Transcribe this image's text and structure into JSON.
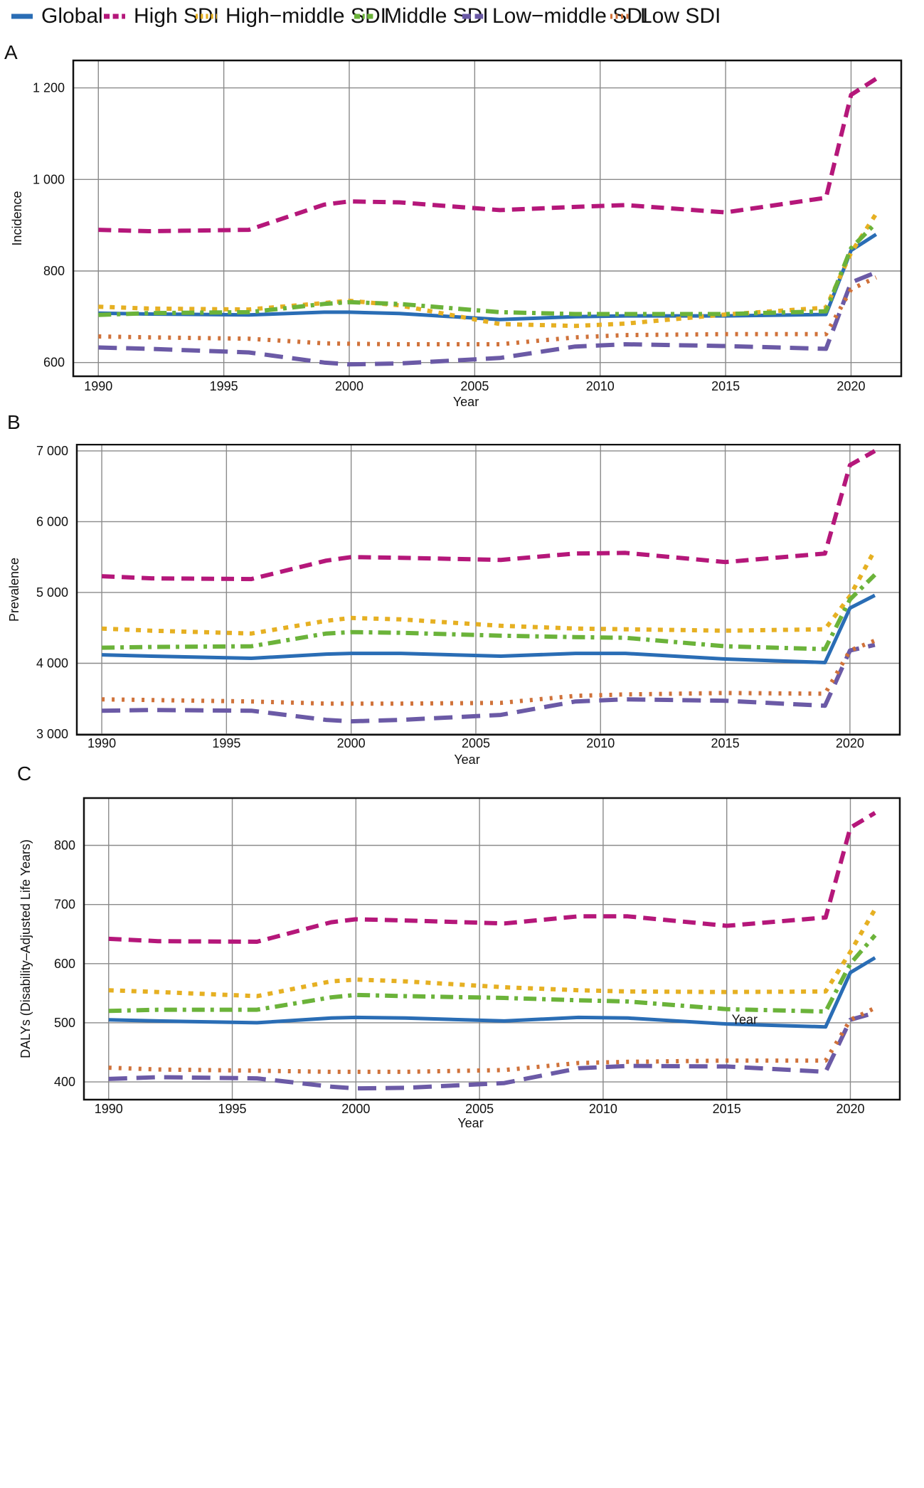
{
  "legend": [
    {
      "name": "Global",
      "color": "#2a6db5",
      "dash": "solid"
    },
    {
      "name": "High SDI",
      "color": "#b5177a",
      "dash": "dash"
    },
    {
      "name": "High−middle SDI",
      "color": "#e6b022",
      "dash": "dot"
    },
    {
      "name": "Middle SDI",
      "color": "#6bb33a",
      "dash": "dashdot"
    },
    {
      "name": "Low−middle SDI",
      "color": "#6b5aa6",
      "dash": "longdash"
    },
    {
      "name": "Low SDI",
      "color": "#d0723a",
      "dash": "smalldot"
    }
  ],
  "chart_data": [
    {
      "panel": "A",
      "type": "line",
      "title": "",
      "xlabel": "Year",
      "ylabel": "Incidence",
      "xlim": [
        1989,
        2022
      ],
      "ylim": [
        570,
        1260
      ],
      "xticks": [
        1990,
        1995,
        2000,
        2005,
        2010,
        2015,
        2020
      ],
      "yticks": [
        600,
        800,
        1000,
        1200
      ],
      "ytick_labels": [
        "600",
        "800",
        "1 000",
        "1 200"
      ],
      "x": [
        1990,
        1992,
        1996,
        1999,
        2000,
        2002,
        2006,
        2009,
        2011,
        2015,
        2019,
        2020,
        2021
      ],
      "series": [
        {
          "name": "Global",
          "values": [
            708,
            706,
            704,
            710,
            710,
            707,
            694,
            700,
            702,
            702,
            705,
            845,
            880
          ]
        },
        {
          "name": "High SDI",
          "values": [
            890,
            887,
            890,
            945,
            952,
            950,
            933,
            940,
            944,
            928,
            960,
            1185,
            1220
          ]
        },
        {
          "name": "High−middle SDI",
          "values": [
            722,
            718,
            716,
            730,
            735,
            725,
            684,
            680,
            685,
            705,
            720,
            840,
            925
          ]
        },
        {
          "name": "Middle SDI",
          "values": [
            704,
            708,
            710,
            728,
            732,
            728,
            710,
            706,
            706,
            706,
            712,
            850,
            905
          ]
        },
        {
          "name": "Low−middle SDI",
          "values": [
            633,
            630,
            622,
            600,
            596,
            598,
            610,
            635,
            640,
            636,
            630,
            775,
            797
          ]
        },
        {
          "name": "Low SDI",
          "values": [
            657,
            655,
            652,
            642,
            641,
            640,
            640,
            655,
            660,
            662,
            662,
            760,
            786
          ]
        }
      ]
    },
    {
      "panel": "B",
      "type": "line",
      "title": "",
      "xlabel": "Year",
      "ylabel": "Prevalence",
      "xlim": [
        1989,
        2022
      ],
      "ylim": [
        2990,
        7090
      ],
      "xticks": [
        1990,
        1995,
        2000,
        2005,
        2010,
        2015,
        2020
      ],
      "yticks": [
        3000,
        4000,
        5000,
        6000,
        7000
      ],
      "ytick_labels": [
        "3 000",
        "4 000",
        "5 000",
        "6 000",
        "7 000"
      ],
      "x": [
        1990,
        1992,
        1996,
        1999,
        2000,
        2002,
        2006,
        2009,
        2011,
        2015,
        2019,
        2020,
        2021
      ],
      "series": [
        {
          "name": "Global",
          "values": [
            4120,
            4100,
            4070,
            4130,
            4140,
            4140,
            4100,
            4140,
            4140,
            4060,
            4010,
            4780,
            4960
          ]
        },
        {
          "name": "High SDI",
          "values": [
            5230,
            5200,
            5190,
            5450,
            5500,
            5490,
            5460,
            5550,
            5560,
            5430,
            5550,
            6800,
            7000
          ]
        },
        {
          "name": "High−middle SDI",
          "values": [
            4490,
            4460,
            4420,
            4600,
            4640,
            4620,
            4530,
            4490,
            4480,
            4460,
            4480,
            4950,
            5600
          ]
        },
        {
          "name": "Middle SDI",
          "values": [
            4220,
            4230,
            4240,
            4420,
            4440,
            4430,
            4390,
            4370,
            4360,
            4240,
            4200,
            4900,
            5250
          ]
        },
        {
          "name": "Low−middle SDI",
          "values": [
            3330,
            3340,
            3330,
            3200,
            3180,
            3200,
            3270,
            3460,
            3490,
            3470,
            3400,
            4180,
            4260
          ]
        },
        {
          "name": "Low SDI",
          "values": [
            3490,
            3480,
            3460,
            3430,
            3430,
            3430,
            3440,
            3540,
            3560,
            3580,
            3570,
            4180,
            4320
          ]
        }
      ]
    },
    {
      "panel": "C",
      "type": "line",
      "title": "",
      "xlabel": "Year",
      "ylabel": "DALYs (Disability–Adjusted Life Years)",
      "xlim": [
        1989,
        2022
      ],
      "ylim": [
        370,
        880
      ],
      "xticks": [
        1990,
        1995,
        2000,
        2005,
        2010,
        2015,
        2020
      ],
      "yticks": [
        400,
        500,
        600,
        700,
        800
      ],
      "ytick_labels": [
        "400",
        "500",
        "600",
        "700",
        "800"
      ],
      "annotations": [
        {
          "text": "Year",
          "x": 2015.2,
          "y": 498
        }
      ],
      "x": [
        1990,
        1992,
        1996,
        1999,
        2000,
        2002,
        2006,
        2009,
        2011,
        2015,
        2019,
        2020,
        2021
      ],
      "series": [
        {
          "name": "Global",
          "values": [
            505,
            503,
            500,
            508,
            509,
            508,
            503,
            509,
            508,
            498,
            493,
            585,
            610
          ]
        },
        {
          "name": "High SDI",
          "values": [
            642,
            638,
            637,
            670,
            675,
            673,
            668,
            680,
            680,
            664,
            678,
            830,
            855
          ]
        },
        {
          "name": "High−middle SDI",
          "values": [
            555,
            552,
            545,
            570,
            573,
            570,
            560,
            555,
            553,
            552,
            553,
            620,
            692
          ]
        },
        {
          "name": "Middle SDI",
          "values": [
            520,
            522,
            522,
            543,
            547,
            545,
            542,
            538,
            536,
            523,
            519,
            600,
            648
          ]
        },
        {
          "name": "Low−middle SDI",
          "values": [
            405,
            408,
            406,
            392,
            389,
            390,
            398,
            423,
            427,
            426,
            417,
            505,
            517
          ]
        },
        {
          "name": "Low SDI",
          "values": [
            424,
            421,
            419,
            417,
            417,
            417,
            420,
            432,
            434,
            436,
            436,
            505,
            525
          ]
        }
      ]
    }
  ]
}
